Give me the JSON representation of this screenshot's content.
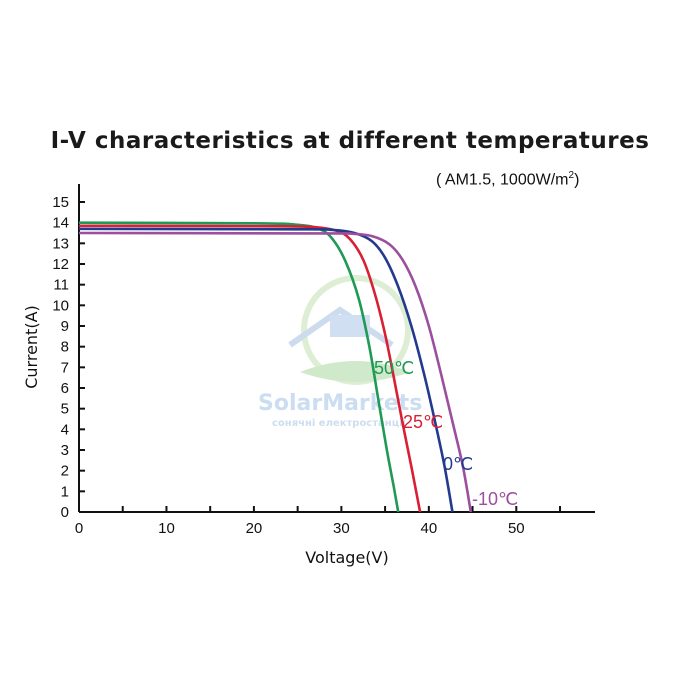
{
  "chart_data": {
    "type": "line",
    "title": "I-V characteristics at different temperatures",
    "subtitle_prefix": "( AM1.5,  1000W/m",
    "subtitle_sup": "2",
    "subtitle_suffix": ")",
    "xlabel": "Voltage(V)",
    "ylabel": "Current(A)",
    "xlim": [
      0,
      59
    ],
    "ylim": [
      0,
      15
    ],
    "x_ticks": [
      0,
      10,
      20,
      30,
      40,
      50
    ],
    "y_ticks": [
      0,
      1,
      2,
      3,
      4,
      5,
      6,
      7,
      8,
      9,
      10,
      11,
      12,
      13,
      14,
      15
    ],
    "grid": false,
    "legend": "none",
    "series": [
      {
        "name": "50℃",
        "color": "#1e9a55",
        "points": [
          [
            0,
            14.0
          ],
          [
            20,
            13.97
          ],
          [
            25,
            13.9
          ],
          [
            27.5,
            13.7
          ],
          [
            29,
            13.2
          ],
          [
            30.5,
            12.1
          ],
          [
            32,
            10.3
          ],
          [
            33.2,
            8.0
          ],
          [
            34.2,
            5.5
          ],
          [
            35.2,
            3.0
          ],
          [
            36,
            1.2
          ],
          [
            36.5,
            0
          ]
        ]
      },
      {
        "name": "25℃",
        "color": "#d81f34",
        "points": [
          [
            0,
            13.85
          ],
          [
            22,
            13.83
          ],
          [
            27,
            13.78
          ],
          [
            29.5,
            13.6
          ],
          [
            31,
            13.2
          ],
          [
            32.5,
            12.2
          ],
          [
            33.8,
            10.6
          ],
          [
            35,
            8.6
          ],
          [
            36,
            6.5
          ],
          [
            37,
            4.3
          ],
          [
            38,
            2.2
          ],
          [
            39,
            0
          ]
        ]
      },
      {
        "name": "0℃",
        "color": "#233a8f",
        "points": [
          [
            0,
            13.7
          ],
          [
            25,
            13.68
          ],
          [
            29,
            13.65
          ],
          [
            31.5,
            13.5
          ],
          [
            33.5,
            13.1
          ],
          [
            35,
            12.3
          ],
          [
            36.5,
            10.9
          ],
          [
            38,
            9.0
          ],
          [
            39.5,
            6.6
          ],
          [
            40.8,
            4.2
          ],
          [
            41.8,
            2.2
          ],
          [
            42.7,
            0
          ]
        ]
      },
      {
        "name": "-10℃",
        "color": "#9b4f9e",
        "points": [
          [
            0,
            13.5
          ],
          [
            28,
            13.48
          ],
          [
            31,
            13.47
          ],
          [
            33.5,
            13.35
          ],
          [
            35.5,
            12.95
          ],
          [
            37,
            12.2
          ],
          [
            38.5,
            10.9
          ],
          [
            40,
            9.0
          ],
          [
            41.5,
            6.5
          ],
          [
            42.8,
            4.2
          ],
          [
            43.9,
            2.2
          ],
          [
            44.8,
            0
          ]
        ]
      }
    ],
    "annotations": [
      {
        "text": "50℃",
        "color": "#1e9a55"
      },
      {
        "text": "25℃",
        "color": "#d81f34"
      },
      {
        "text": "0℃",
        "color": "#233a8f"
      },
      {
        "text": "-10℃",
        "color": "#9b4f9e"
      }
    ]
  },
  "watermark": {
    "brand": "SolarMarkets",
    "tagline": "сонячні електростанції"
  }
}
